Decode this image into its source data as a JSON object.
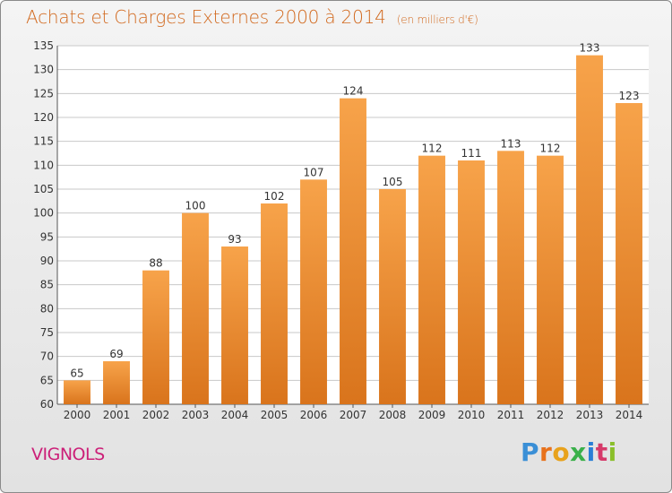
{
  "title": "Achats et Charges Externes 2000 à 2014",
  "subtitle": "(en milliers d'€)",
  "commune": "VIGNOLS",
  "logo": {
    "letters": [
      "P",
      "r",
      "o",
      "x",
      "i",
      "t",
      "i"
    ],
    "colors": [
      "#3a8fd6",
      "#e8721c",
      "#e8a21c",
      "#3ab04a",
      "#2a7fd6",
      "#d63a6a",
      "#8abf2a"
    ]
  },
  "colors": {
    "bar_top": "#f7a34a",
    "bar_bottom": "#d9741c",
    "grid": "#c8c8c8",
    "title": "#d2691e",
    "commune": "#cc1f78"
  },
  "chart_data": {
    "type": "bar",
    "title": "Achats et Charges Externes 2000 à 2014",
    "subtitle": "(en milliers d'€)",
    "categories": [
      "2000",
      "2001",
      "2002",
      "2003",
      "2004",
      "2005",
      "2006",
      "2007",
      "2008",
      "2009",
      "2010",
      "2011",
      "2012",
      "2013",
      "2014"
    ],
    "values": [
      65,
      69,
      88,
      100,
      93,
      102,
      107,
      124,
      105,
      112,
      111,
      113,
      112,
      133,
      123
    ],
    "ylim": [
      60,
      135
    ],
    "yticks": [
      60,
      65,
      70,
      75,
      80,
      85,
      90,
      95,
      100,
      105,
      110,
      115,
      120,
      125,
      130,
      135
    ],
    "grid": true,
    "xlabel": "",
    "ylabel": ""
  }
}
